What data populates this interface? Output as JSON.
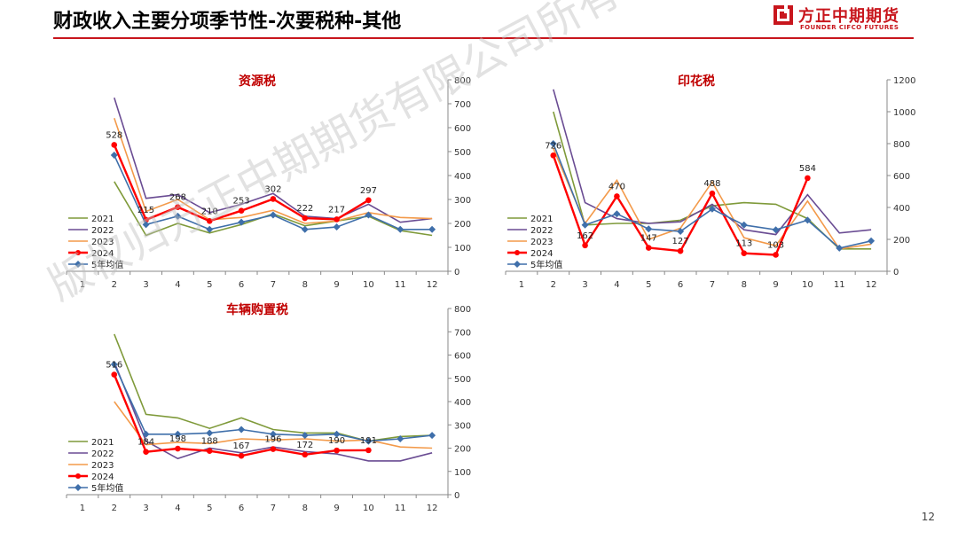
{
  "header": {
    "title": "财政收入主要分项季节性-次要税种-其他",
    "logo_cn": "方正中期期货",
    "logo_en": "FOUNDER CIFCO FUTURES",
    "accent": "#c8161d"
  },
  "page_number": "12",
  "watermark": "版权归方正中期期货有限公司所有",
  "chart_data": [
    {
      "type": "line",
      "title": "资源税",
      "categories": [
        "1",
        "2",
        "3",
        "4",
        "5",
        "6",
        "7",
        "8",
        "9",
        "10",
        "11",
        "12"
      ],
      "ylim": [
        0,
        800
      ],
      "yticks": [
        0,
        100,
        200,
        300,
        400,
        500,
        600,
        700,
        800
      ],
      "legend": "bottom-left",
      "series": [
        {
          "name": "2021",
          "color": "#7f9a3a",
          "values": [
            null,
            375,
            150,
            200,
            160,
            195,
            240,
            190,
            210,
            230,
            170,
            150
          ]
        },
        {
          "name": "2022",
          "color": "#6a4c93",
          "values": [
            null,
            725,
            305,
            320,
            245,
            280,
            325,
            230,
            220,
            280,
            205,
            220
          ]
        },
        {
          "name": "2023",
          "color": "#f39a4a",
          "values": [
            null,
            640,
            250,
            300,
            215,
            225,
            255,
            200,
            210,
            245,
            225,
            220
          ]
        },
        {
          "name": "2024",
          "color": "#ff0000",
          "marker": "circle",
          "values": [
            null,
            528,
            215,
            268,
            210,
            253,
            302,
            222,
            217,
            297,
            null,
            null
          ]
        },
        {
          "name": "5年均值",
          "color": "#3f6faa",
          "marker": "diamond",
          "values": [
            null,
            485,
            195,
            230,
            175,
            205,
            235,
            175,
            185,
            235,
            175,
            175
          ]
        }
      ],
      "data_labels": {
        "series": "2024",
        "values": [
          "528",
          "215",
          "268",
          "210",
          "253",
          "302",
          "222",
          "217",
          "297"
        ]
      }
    },
    {
      "type": "line",
      "title": "印花税",
      "categories": [
        "1",
        "2",
        "3",
        "4",
        "5",
        "6",
        "7",
        "8",
        "9",
        "10",
        "11",
        "12"
      ],
      "ylim": [
        0,
        1200
      ],
      "yticks": [
        0,
        200,
        400,
        600,
        800,
        1000,
        1200
      ],
      "legend": "bottom-left",
      "series": [
        {
          "name": "2021",
          "color": "#7f9a3a",
          "values": [
            null,
            1000,
            290,
            300,
            300,
            320,
            410,
            430,
            420,
            330,
            140,
            140
          ]
        },
        {
          "name": "2022",
          "color": "#6a4c93",
          "values": [
            null,
            1140,
            430,
            330,
            300,
            310,
            420,
            260,
            230,
            480,
            240,
            260
          ]
        },
        {
          "name": "2023",
          "color": "#f39a4a",
          "values": [
            null,
            770,
            300,
            570,
            200,
            270,
            560,
            210,
            160,
            440,
            140,
            170
          ]
        },
        {
          "name": "2024",
          "color": "#ff0000",
          "marker": "circle",
          "values": [
            null,
            726,
            162,
            470,
            147,
            127,
            488,
            113,
            103,
            584,
            null,
            null
          ]
        },
        {
          "name": "5年均值",
          "color": "#3f6faa",
          "marker": "diamond",
          "values": [
            null,
            800,
            290,
            360,
            265,
            250,
            390,
            290,
            260,
            320,
            145,
            190
          ]
        }
      ],
      "data_labels": {
        "series": "2024",
        "values": [
          "726",
          "162",
          "470",
          "147",
          "127",
          "488",
          "113",
          "103",
          "584"
        ]
      }
    },
    {
      "type": "line",
      "title": "车辆购置税",
      "categories": [
        "1",
        "2",
        "3",
        "4",
        "5",
        "6",
        "7",
        "8",
        "9",
        "10",
        "11",
        "12"
      ],
      "ylim": [
        0,
        800
      ],
      "yticks": [
        0,
        100,
        200,
        300,
        400,
        500,
        600,
        700,
        800
      ],
      "legend": "bottom-left",
      "series": [
        {
          "name": "2021",
          "color": "#7f9a3a",
          "values": [
            null,
            690,
            345,
            330,
            285,
            330,
            280,
            265,
            265,
            230,
            250,
            255
          ]
        },
        {
          "name": "2022",
          "color": "#6a4c93",
          "values": [
            null,
            570,
            230,
            155,
            200,
            180,
            205,
            185,
            175,
            145,
            145,
            180
          ]
        },
        {
          "name": "2023",
          "color": "#f39a4a",
          "values": [
            null,
            400,
            215,
            225,
            220,
            240,
            235,
            240,
            230,
            235,
            205,
            200
          ]
        },
        {
          "name": "2024",
          "color": "#ff0000",
          "marker": "circle",
          "values": [
            null,
            516,
            184,
            198,
            188,
            167,
            196,
            172,
            190,
            191,
            null,
            null
          ]
        },
        {
          "name": "5年均值",
          "color": "#3f6faa",
          "marker": "diamond",
          "values": [
            null,
            560,
            260,
            260,
            265,
            280,
            260,
            255,
            260,
            230,
            240,
            255
          ]
        }
      ],
      "data_labels": {
        "series": "2024",
        "values": [
          "516",
          "184",
          "198",
          "188",
          "167",
          "196",
          "172",
          "190",
          "191"
        ]
      }
    }
  ]
}
